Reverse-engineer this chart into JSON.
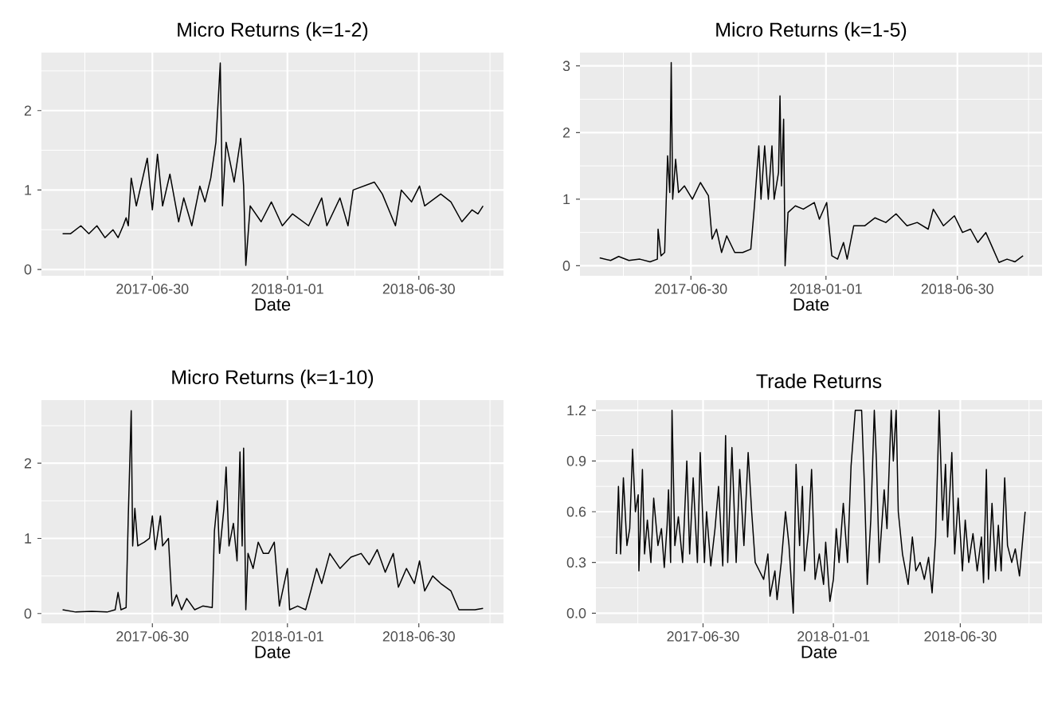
{
  "chart_data": [
    {
      "type": "line",
      "title": "Micro Returns (k=1-2)",
      "xlabel": "Date",
      "grid": true,
      "xlim": [
        "2017-01-29",
        "2018-10-24"
      ],
      "xticks": [
        "2017-06-30",
        "2018-01-01",
        "2018-06-30"
      ],
      "ylim": [
        -0.08,
        2.73
      ],
      "yticks": [
        0,
        1,
        2
      ],
      "x": [
        "2017-02-27",
        "2017-03-10",
        "2017-03-24",
        "2017-04-04",
        "2017-04-15",
        "2017-04-26",
        "2017-05-07",
        "2017-05-14",
        "2017-05-21",
        "2017-05-25",
        "2017-05-28",
        "2017-06-01",
        "2017-06-08",
        "2017-06-23",
        "2017-06-30",
        "2017-07-07",
        "2017-07-14",
        "2017-07-24",
        "2017-08-05",
        "2017-08-12",
        "2017-08-23",
        "2017-09-03",
        "2017-09-10",
        "2017-09-18",
        "2017-09-25",
        "2017-10-01",
        "2017-10-04",
        "2017-10-09",
        "2017-10-20",
        "2017-10-29",
        "2017-11-02",
        "2017-11-05",
        "2017-11-11",
        "2017-11-26",
        "2017-12-10",
        "2017-12-25",
        "2018-01-08",
        "2018-01-30",
        "2018-02-17",
        "2018-02-24",
        "2018-03-14",
        "2018-03-25",
        "2018-04-01",
        "2018-04-30",
        "2018-05-11",
        "2018-05-29",
        "2018-06-06",
        "2018-06-20",
        "2018-07-01",
        "2018-07-08",
        "2018-07-30",
        "2018-08-13",
        "2018-08-28",
        "2018-09-11",
        "2018-09-19",
        "2018-09-26"
      ],
      "series": [
        {
          "color": "#000000",
          "values": [
            0.45,
            0.45,
            0.55,
            0.45,
            0.55,
            0.4,
            0.5,
            0.4,
            0.55,
            0.65,
            0.55,
            1.15,
            0.8,
            1.4,
            0.75,
            1.45,
            0.8,
            1.2,
            0.6,
            0.9,
            0.55,
            1.05,
            0.85,
            1.15,
            1.6,
            2.6,
            0.8,
            1.6,
            1.1,
            1.65,
            1.05,
            0.05,
            0.8,
            0.6,
            0.85,
            0.55,
            0.7,
            0.55,
            0.9,
            0.55,
            0.9,
            0.55,
            1.0,
            1.1,
            0.95,
            0.55,
            1.0,
            0.85,
            1.05,
            0.8,
            0.95,
            0.85,
            0.6,
            0.75,
            0.7,
            0.8
          ]
        }
      ]
    },
    {
      "type": "line",
      "title": "Micro Returns (k=1-5)",
      "xlabel": "Date",
      "grid": true,
      "xlim": [
        "2017-01-29",
        "2018-10-24"
      ],
      "xticks": [
        "2017-06-30",
        "2018-01-01",
        "2018-06-30"
      ],
      "ylim": [
        -0.15,
        3.2
      ],
      "yticks": [
        0,
        1,
        2,
        3
      ],
      "x": [
        "2017-02-25",
        "2017-03-12",
        "2017-03-23",
        "2017-04-06",
        "2017-04-21",
        "2017-05-05",
        "2017-05-15",
        "2017-05-16",
        "2017-05-20",
        "2017-05-25",
        "2017-05-29",
        "2017-06-01",
        "2017-06-03",
        "2017-06-05",
        "2017-06-09",
        "2017-06-13",
        "2017-06-21",
        "2017-07-02",
        "2017-07-13",
        "2017-07-24",
        "2017-07-29",
        "2017-08-04",
        "2017-08-11",
        "2017-08-18",
        "2017-08-29",
        "2017-09-09",
        "2017-09-20",
        "2017-09-25",
        "2017-10-01",
        "2017-10-04",
        "2017-10-09",
        "2017-10-14",
        "2017-10-19",
        "2017-10-22",
        "2017-10-28",
        "2017-10-30",
        "2017-11-01",
        "2017-11-04",
        "2017-11-06",
        "2017-11-10",
        "2017-11-20",
        "2017-12-01",
        "2017-12-16",
        "2017-12-23",
        "2018-01-02",
        "2018-01-09",
        "2018-01-17",
        "2018-01-25",
        "2018-01-30",
        "2018-02-08",
        "2018-02-23",
        "2018-03-09",
        "2018-03-24",
        "2018-04-07",
        "2018-04-22",
        "2018-05-06",
        "2018-05-21",
        "2018-05-28",
        "2018-06-11",
        "2018-06-26",
        "2018-07-07",
        "2018-07-18",
        "2018-07-28",
        "2018-08-08",
        "2018-08-16",
        "2018-08-26",
        "2018-09-06",
        "2018-09-17",
        "2018-09-28"
      ],
      "series": [
        {
          "color": "#000000",
          "values": [
            0.12,
            0.08,
            0.14,
            0.08,
            0.1,
            0.06,
            0.1,
            0.55,
            0.15,
            0.2,
            1.65,
            1.1,
            3.05,
            1.0,
            1.6,
            1.1,
            1.2,
            1.0,
            1.25,
            1.05,
            0.4,
            0.55,
            0.2,
            0.45,
            0.2,
            0.2,
            0.25,
            0.9,
            1.8,
            1.0,
            1.8,
            1.0,
            1.8,
            1.0,
            1.4,
            2.55,
            1.2,
            2.2,
            0.0,
            0.8,
            0.9,
            0.85,
            0.95,
            0.7,
            0.95,
            0.15,
            0.1,
            0.35,
            0.1,
            0.6,
            0.6,
            0.72,
            0.65,
            0.78,
            0.6,
            0.65,
            0.55,
            0.85,
            0.6,
            0.75,
            0.5,
            0.55,
            0.35,
            0.5,
            0.3,
            0.05,
            0.1,
            0.06,
            0.15
          ]
        }
      ]
    },
    {
      "type": "line",
      "title": "Micro Returns (k=1-10)",
      "xlabel": "Date",
      "grid": true,
      "xlim": [
        "2017-01-29",
        "2018-10-24"
      ],
      "xticks": [
        "2017-06-30",
        "2018-01-01",
        "2018-06-30"
      ],
      "ylim": [
        -0.13,
        2.84
      ],
      "yticks": [
        0,
        1,
        2
      ],
      "x": [
        "2017-02-27",
        "2017-03-17",
        "2017-04-08",
        "2017-04-29",
        "2017-05-10",
        "2017-05-14",
        "2017-05-18",
        "2017-05-25",
        "2017-05-28",
        "2017-06-01",
        "2017-06-03",
        "2017-06-06",
        "2017-06-10",
        "2017-06-19",
        "2017-06-26",
        "2017-06-30",
        "2017-07-04",
        "2017-07-11",
        "2017-07-14",
        "2017-07-22",
        "2017-07-27",
        "2017-08-02",
        "2017-08-09",
        "2017-08-16",
        "2017-08-27",
        "2017-09-07",
        "2017-09-20",
        "2017-09-23",
        "2017-09-27",
        "2017-09-30",
        "2017-10-06",
        "2017-10-09",
        "2017-10-13",
        "2017-10-19",
        "2017-10-24",
        "2017-10-28",
        "2017-10-31",
        "2017-11-02",
        "2017-11-05",
        "2017-11-08",
        "2017-11-15",
        "2017-11-22",
        "2017-11-29",
        "2017-12-06",
        "2017-12-14",
        "2017-12-21",
        "2018-01-01",
        "2018-01-04",
        "2018-01-15",
        "2018-01-26",
        "2018-02-02",
        "2018-02-10",
        "2018-02-17",
        "2018-02-28",
        "2018-03-14",
        "2018-03-29",
        "2018-04-12",
        "2018-04-23",
        "2018-05-04",
        "2018-05-15",
        "2018-05-26",
        "2018-06-02",
        "2018-06-13",
        "2018-06-24",
        "2018-07-01",
        "2018-07-08",
        "2018-07-19",
        "2018-07-30",
        "2018-08-13",
        "2018-08-24",
        "2018-09-04",
        "2018-09-15",
        "2018-09-26"
      ],
      "series": [
        {
          "color": "#000000",
          "values": [
            0.05,
            0.02,
            0.03,
            0.02,
            0.05,
            0.28,
            0.05,
            0.08,
            1.3,
            2.7,
            0.9,
            1.4,
            0.9,
            0.95,
            1.0,
            1.3,
            0.85,
            1.3,
            0.9,
            1.0,
            0.1,
            0.25,
            0.05,
            0.2,
            0.05,
            0.1,
            0.08,
            1.1,
            1.5,
            0.8,
            1.4,
            1.95,
            0.9,
            1.2,
            0.7,
            2.15,
            0.9,
            2.2,
            0.05,
            0.8,
            0.6,
            0.95,
            0.8,
            0.8,
            0.95,
            0.1,
            0.6,
            0.05,
            0.1,
            0.05,
            0.3,
            0.6,
            0.4,
            0.8,
            0.6,
            0.75,
            0.8,
            0.65,
            0.85,
            0.55,
            0.8,
            0.35,
            0.6,
            0.4,
            0.7,
            0.3,
            0.5,
            0.4,
            0.3,
            0.05,
            0.05,
            0.05,
            0.07
          ]
        }
      ]
    },
    {
      "type": "line",
      "title": "Trade Returns",
      "xlabel": "Date",
      "grid": true,
      "xlim": [
        "2017-01-29",
        "2018-10-24"
      ],
      "xticks": [
        "2017-06-30",
        "2018-01-01",
        "2018-06-30"
      ],
      "ylim": [
        -0.06,
        1.26
      ],
      "yticks": [
        {
          "value": 0,
          "label": "0.0"
        },
        0.3,
        0.6,
        0.9,
        1.2
      ],
      "x": [
        "2017-02-27",
        "2017-03-02",
        "2017-03-05",
        "2017-03-09",
        "2017-03-14",
        "2017-03-18",
        "2017-03-22",
        "2017-03-26",
        "2017-03-30",
        "2017-03-31",
        "2017-04-05",
        "2017-04-08",
        "2017-04-12",
        "2017-04-17",
        "2017-04-21",
        "2017-04-27",
        "2017-05-02",
        "2017-05-06",
        "2017-05-10",
        "2017-05-12",
        "2017-05-15",
        "2017-05-17",
        "2017-05-21",
        "2017-05-26",
        "2017-06-01",
        "2017-06-07",
        "2017-06-11",
        "2017-06-16",
        "2017-06-22",
        "2017-06-26",
        "2017-07-02",
        "2017-07-05",
        "2017-07-11",
        "2017-07-17",
        "2017-07-22",
        "2017-07-28",
        "2017-08-01",
        "2017-08-04",
        "2017-08-10",
        "2017-08-16",
        "2017-08-21",
        "2017-08-27",
        "2017-09-02",
        "2017-09-07",
        "2017-09-12",
        "2017-09-18",
        "2017-09-24",
        "2017-09-30",
        "2017-10-03",
        "2017-10-10",
        "2017-10-13",
        "2017-10-19",
        "2017-10-25",
        "2017-10-30",
        "2017-11-05",
        "2017-11-09",
        "2017-11-14",
        "2017-11-18",
        "2017-11-21",
        "2017-11-27",
        "2017-12-01",
        "2017-12-06",
        "2017-12-12",
        "2017-12-18",
        "2017-12-21",
        "2017-12-27",
        "2018-01-01",
        "2018-01-05",
        "2018-01-09",
        "2018-01-15",
        "2018-01-21",
        "2018-01-26",
        "2018-02-01",
        "2018-02-10",
        "2018-02-14",
        "2018-02-18",
        "2018-02-23",
        "2018-02-28",
        "2018-03-03",
        "2018-03-07",
        "2018-03-14",
        "2018-03-18",
        "2018-03-24",
        "2018-03-27",
        "2018-03-31",
        "2018-04-03",
        "2018-04-09",
        "2018-04-17",
        "2018-04-23",
        "2018-04-28",
        "2018-05-04",
        "2018-05-10",
        "2018-05-16",
        "2018-05-21",
        "2018-05-26",
        "2018-05-31",
        "2018-06-05",
        "2018-06-09",
        "2018-06-12",
        "2018-06-18",
        "2018-06-22",
        "2018-06-27",
        "2018-07-03",
        "2018-07-07",
        "2018-07-12",
        "2018-07-18",
        "2018-07-24",
        "2018-07-30",
        "2018-08-02",
        "2018-08-06",
        "2018-08-09",
        "2018-08-14",
        "2018-08-19",
        "2018-08-23",
        "2018-08-27",
        "2018-09-01",
        "2018-09-05",
        "2018-09-11",
        "2018-09-16",
        "2018-09-22",
        "2018-09-30"
      ],
      "series": [
        {
          "color": "#000000",
          "values": [
            0.35,
            0.75,
            0.35,
            0.8,
            0.4,
            0.5,
            0.97,
            0.6,
            0.7,
            0.25,
            0.85,
            0.35,
            0.55,
            0.3,
            0.68,
            0.4,
            0.5,
            0.27,
            0.52,
            0.73,
            0.3,
            1.2,
            0.4,
            0.57,
            0.3,
            0.9,
            0.35,
            0.8,
            0.3,
            0.95,
            0.3,
            0.6,
            0.28,
            0.5,
            0.75,
            0.28,
            1.05,
            0.3,
            0.98,
            0.3,
            0.85,
            0.4,
            0.95,
            0.6,
            0.3,
            0.25,
            0.2,
            0.35,
            0.1,
            0.25,
            0.08,
            0.3,
            0.6,
            0.4,
            0.0,
            0.88,
            0.4,
            0.75,
            0.25,
            0.5,
            0.85,
            0.2,
            0.35,
            0.17,
            0.42,
            0.07,
            0.2,
            0.5,
            0.3,
            0.65,
            0.3,
            0.87,
            1.2,
            1.2,
            0.75,
            0.17,
            0.55,
            1.2,
            0.9,
            0.3,
            0.73,
            0.5,
            1.2,
            0.9,
            1.2,
            0.6,
            0.35,
            0.17,
            0.45,
            0.25,
            0.3,
            0.2,
            0.33,
            0.12,
            0.45,
            1.2,
            0.55,
            0.88,
            0.45,
            0.95,
            0.35,
            0.68,
            0.25,
            0.55,
            0.3,
            0.47,
            0.25,
            0.45,
            0.18,
            0.85,
            0.2,
            0.65,
            0.25,
            0.52,
            0.25,
            0.8,
            0.4,
            0.3,
            0.38,
            0.22,
            0.6
          ]
        }
      ]
    }
  ]
}
